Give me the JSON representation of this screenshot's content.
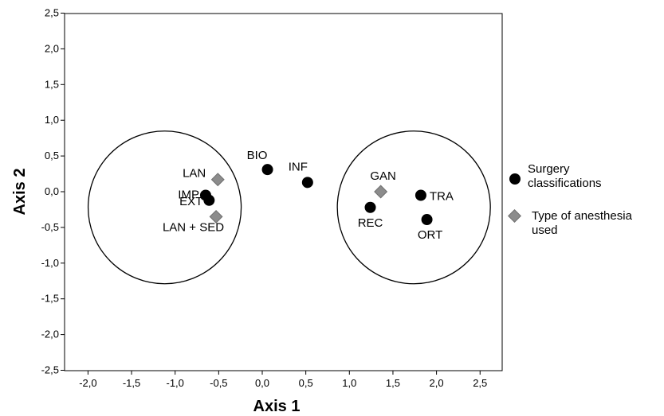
{
  "chart_data": {
    "type": "scatter",
    "xlabel": "Axis 1",
    "ylabel": "Axis 2",
    "xlim": [
      -2.3,
      2.8
    ],
    "ylim": [
      -2.5,
      2.5
    ],
    "x_ticks": [
      "-2,0",
      "-1,5",
      "-1,0",
      "-0,5",
      "0,0",
      "0,5",
      "1,0",
      "1,5",
      "2,0",
      "2,5"
    ],
    "x_tick_values": [
      -2.0,
      -1.5,
      -1.0,
      -0.5,
      0.0,
      0.5,
      1.0,
      1.5,
      2.0,
      2.5
    ],
    "y_ticks": [
      "2,5",
      "2,0",
      "1,5",
      "1,0",
      "0,5",
      "0,0",
      "-0,5",
      "-1,0",
      "-1,5",
      "-2,0",
      "-2,5"
    ],
    "y_tick_values": [
      2.5,
      2.0,
      1.5,
      1.0,
      0.5,
      0.0,
      -0.5,
      -1.0,
      -1.5,
      -2.0,
      -2.5
    ],
    "grid": false,
    "legend_position": "right",
    "series": [
      {
        "name": "Surgery classifications",
        "marker": "circle",
        "color": "#000000",
        "points": [
          {
            "label": "BIO",
            "x": 0.06,
            "y": 0.31
          },
          {
            "label": "INF",
            "x": 0.52,
            "y": 0.13
          },
          {
            "label": "IMP",
            "x": -0.65,
            "y": -0.05
          },
          {
            "label": "EXT",
            "x": -0.61,
            "y": -0.12
          },
          {
            "label": "TRA",
            "x": 1.82,
            "y": -0.05
          },
          {
            "label": "REC",
            "x": 1.24,
            "y": -0.22
          },
          {
            "label": "ORT",
            "x": 1.89,
            "y": -0.39
          }
        ]
      },
      {
        "name": "Type of anesthesia used",
        "marker": "diamond",
        "color": "#8c8c8c",
        "points": [
          {
            "label": "LAN",
            "x": -0.51,
            "y": 0.17
          },
          {
            "label": "LAN + SED",
            "x": -0.53,
            "y": -0.35
          },
          {
            "label": "GAN",
            "x": 1.36,
            "y": 0.0
          }
        ]
      }
    ],
    "annotations": [
      {
        "shape": "circle",
        "cx": -1.12,
        "cy": -0.22
      },
      {
        "shape": "circle",
        "cx": 1.74,
        "cy": -0.22
      }
    ]
  }
}
